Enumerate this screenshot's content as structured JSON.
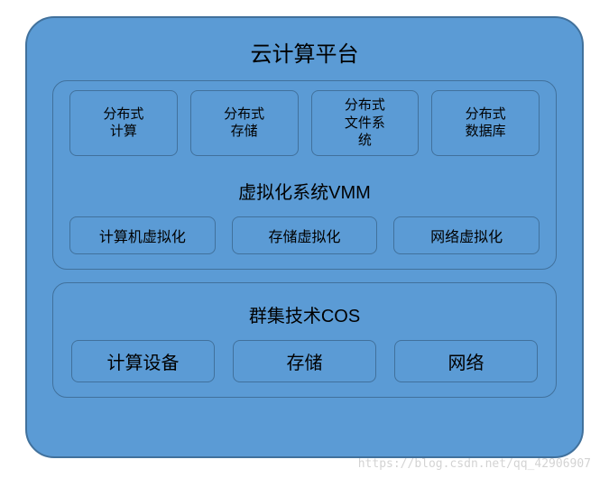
{
  "diagram": {
    "type": "nested-block",
    "background_color": "#5b9bd5",
    "border_color": "#41719c",
    "outer_radius": 32,
    "inner_radius": 16,
    "box_radius": 8,
    "title": "云计算平台",
    "title_fontsize": 24,
    "text_color": "#000000",
    "sections": {
      "vmm": {
        "title": "虚拟化系统VMM",
        "title_fontsize": 20,
        "top_boxes": [
          "分布式\n计算",
          "分布式\n存储",
          "分布式\n文件系\n统",
          "分布式\n数据库"
        ],
        "bottom_boxes": [
          "计算机虚拟化",
          "存储虚拟化",
          "网络虚拟化"
        ]
      },
      "cos": {
        "title": "群集技术COS",
        "title_fontsize": 20,
        "boxes": [
          "计算设备",
          "存储",
          "网络"
        ]
      }
    }
  },
  "watermark": "https://blog.csdn.net/qq_42906907"
}
